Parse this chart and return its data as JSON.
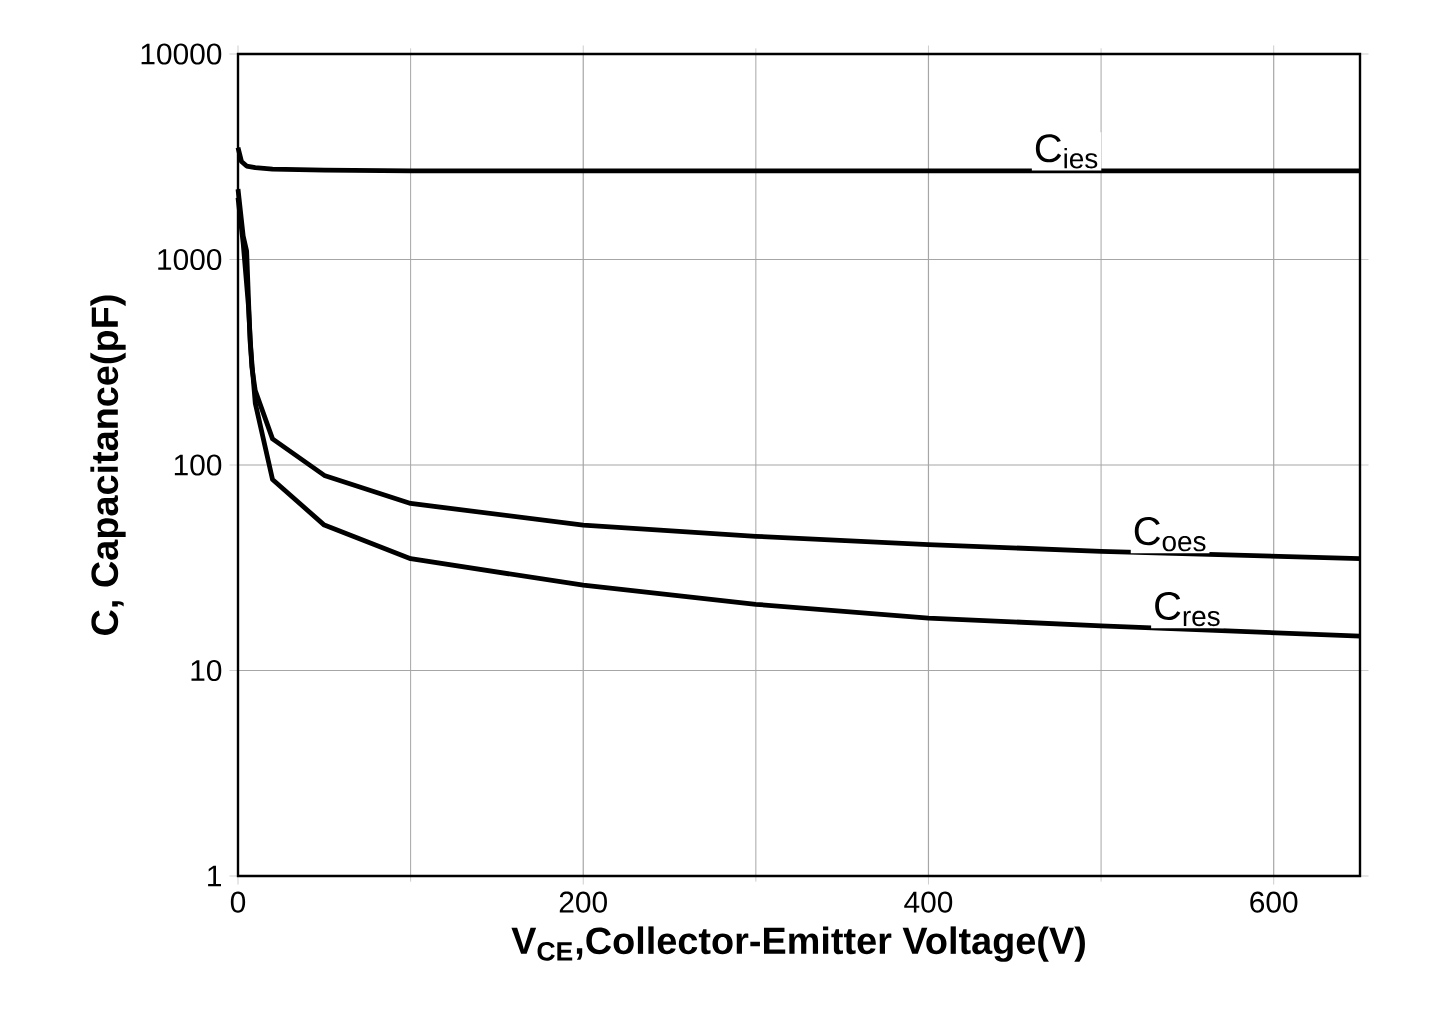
{
  "chart_data": {
    "type": "line",
    "xlabel": "V$_{CE}$,Collector-Emitter Voltage(V)",
    "ylabel": "C, Capacitance(pF)",
    "log": "y",
    "grid": true,
    "xlim": [
      0,
      650
    ],
    "ylim": [
      1,
      10000
    ],
    "xticks": [
      0,
      200,
      400,
      600
    ],
    "yticks": [
      1,
      10,
      100,
      1000,
      10000
    ],
    "line_style": "solid",
    "marker": "none",
    "series": [
      {
        "color": "#000000",
        "x": [
          0,
          2,
          5,
          10,
          20,
          50,
          100,
          200,
          300,
          400,
          500,
          650
        ],
        "values": [
          3500,
          3000,
          2850,
          2800,
          2750,
          2720,
          2700,
          2700,
          2700,
          2700,
          2700,
          2700
        ]
      },
      {
        "color": "#000000",
        "x": [
          0,
          3,
          6,
          8,
          10,
          20,
          50,
          100,
          200,
          300,
          400,
          500,
          650
        ],
        "values": [
          2000,
          1200,
          600,
          300,
          230,
          134,
          89,
          65,
          51,
          45,
          41,
          38,
          35
        ]
      },
      {
        "color": "#000000",
        "x": [
          0,
          3,
          5,
          7,
          10,
          20,
          50,
          100,
          200,
          300,
          400,
          500,
          650
        ],
        "values": [
          2200,
          1300,
          1100,
          400,
          200,
          85,
          51,
          35,
          26,
          21,
          18,
          16.5,
          14.7
        ]
      }
    ],
    "annotations": [
      {
        "text": "C$_{ies}$",
        "x": 480,
        "y": 2700
      },
      {
        "text": "C$_{oes}$",
        "x": 540,
        "y": 37
      },
      {
        "text": "C$_{res}$",
        "x": 550,
        "y": 16
      }
    ]
  }
}
